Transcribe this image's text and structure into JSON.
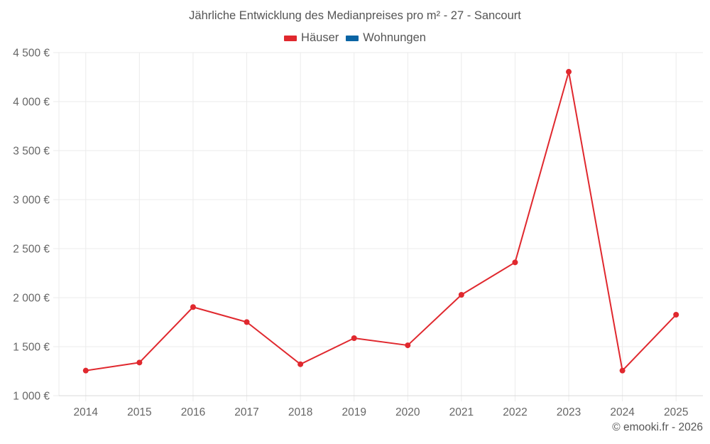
{
  "header": {
    "title": "Jährliche Entwicklung des Medianpreises pro m² - 27 - Sancourt"
  },
  "legend": {
    "items": [
      {
        "label": "Häuser",
        "color": "#e0282e"
      },
      {
        "label": "Wohnungen",
        "color": "#0a64a4"
      }
    ]
  },
  "footer": {
    "credit": "© emooki.fr - 2026"
  },
  "chart_data": {
    "type": "line",
    "title": "Jährliche Entwicklung des Medianpreises pro m² - 27 - Sancourt",
    "xlabel": "",
    "ylabel": "",
    "categories": [
      "2014",
      "2015",
      "2016",
      "2017",
      "2018",
      "2019",
      "2020",
      "2021",
      "2022",
      "2023",
      "2024",
      "2025"
    ],
    "series": [
      {
        "name": "Häuser",
        "color": "#e0282e",
        "values": [
          1256,
          1338,
          1904,
          1751,
          1321,
          1587,
          1514,
          2029,
          2360,
          4304,
          1256,
          1826
        ]
      },
      {
        "name": "Wohnungen",
        "color": "#0a64a4",
        "values": []
      }
    ],
    "ylim": [
      1000,
      4500
    ],
    "yticks": [
      1000,
      1500,
      2000,
      2500,
      3000,
      3500,
      4000,
      4500
    ],
    "ytick_labels": [
      "1 000 €",
      "1 500 €",
      "2 000 €",
      "2 500 €",
      "3 000 €",
      "3 500 €",
      "4 000 €",
      "4 500 €"
    ],
    "grid": true,
    "legend_position": "top"
  }
}
